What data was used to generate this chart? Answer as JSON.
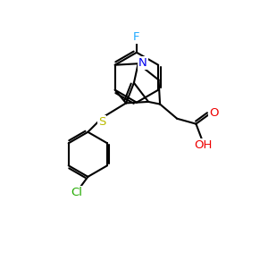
{
  "background_color": "#ffffff",
  "atom_colors": {
    "N": "#0000ee",
    "O": "#ee0000",
    "S": "#bbbb00",
    "F": "#22aaff",
    "Cl": "#22aa00"
  },
  "bond_color": "#000000",
  "bond_width": 1.5,
  "font_size": 9.5,
  "ring_r": 0.95,
  "cph_r": 0.85
}
